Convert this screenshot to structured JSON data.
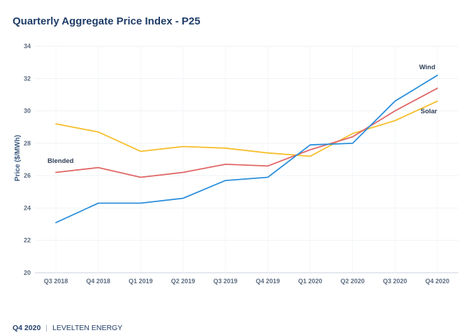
{
  "title": "Quarterly Aggregate Price Index - P25",
  "footer": {
    "period": "Q4 2020",
    "separator": "|",
    "org": "LEVELTEN ENERGY"
  },
  "chart_data": {
    "type": "line",
    "title": "Quarterly Aggregate Price Index - P25",
    "xlabel": "",
    "ylabel": "Price ($/MWh)",
    "categories": [
      "Q3 2018",
      "Q4 2018",
      "Q1 2019",
      "Q2 2019",
      "Q3 2019",
      "Q4 2019",
      "Q1 2020",
      "Q2 2020",
      "Q3 2020",
      "Q4 2020"
    ],
    "ylim": [
      20,
      34
    ],
    "yticks": [
      20,
      22,
      24,
      26,
      28,
      30,
      32,
      34
    ],
    "grid": true,
    "series": [
      {
        "name": "Wind",
        "color": "#2b8fdc",
        "values": [
          23.1,
          24.3,
          24.3,
          24.6,
          25.7,
          25.9,
          27.9,
          28.0,
          30.6,
          32.2
        ]
      },
      {
        "name": "Blended",
        "color": "#e06565",
        "values": [
          26.2,
          26.5,
          25.9,
          26.2,
          26.7,
          26.6,
          27.6,
          28.4,
          30.0,
          31.4
        ]
      },
      {
        "name": "Solar",
        "color": "#f7be2b",
        "values": [
          29.2,
          28.7,
          27.5,
          27.8,
          27.7,
          27.4,
          27.2,
          28.6,
          29.4,
          30.6
        ]
      }
    ]
  }
}
